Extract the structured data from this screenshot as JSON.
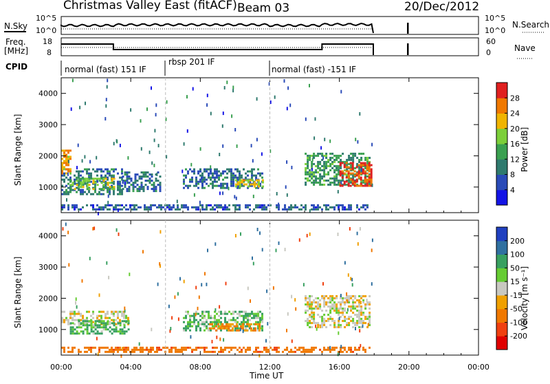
{
  "header": {
    "title": "Christmas Valley East (fitACF)",
    "beam": "Beam 03",
    "date": "20/Dec/2012"
  },
  "top_panels": {
    "nsky_label": "N.Sky",
    "nsearch_label": "N.Search",
    "noise_ticks_left": [
      "10^5",
      "10^0"
    ],
    "noise_ticks_right": [
      "10^5",
      "10^0"
    ],
    "freq_label_line1": "Freq.",
    "freq_label_line2": "[MHz]",
    "freq_ticks": [
      "18",
      "8"
    ],
    "nave_label": "Nave",
    "nave_ticks": [
      "60",
      "0"
    ],
    "cpid_label": "CPID",
    "cpid_segments": [
      {
        "label": "normal (fast) 151 IF",
        "start": 0,
        "end": 6
      },
      {
        "label": "rbsp 201 IF",
        "start": 6,
        "end": 12
      },
      {
        "label": "normal (fast) -151 IF",
        "start": 12,
        "end": 18.2
      }
    ]
  },
  "axes": {
    "xlabel": "Time UT",
    "x_ticks": [
      "00:00",
      "04:00",
      "08:00",
      "12:00",
      "16:00",
      "20:00",
      "00:00"
    ],
    "ylabel": "Slant Range [km]",
    "y_ticks": [
      "1000",
      "2000",
      "3000",
      "4000"
    ]
  },
  "power_bar": {
    "label": "Power [dB]",
    "ticks": [
      "4",
      "8",
      "12",
      "16",
      "20",
      "24",
      "28"
    ],
    "colors": [
      "#1414e6",
      "#2a4bb8",
      "#2f7a6e",
      "#3aa050",
      "#7ccf3a",
      "#f0b400",
      "#f07800",
      "#e02020"
    ]
  },
  "velocity_bar": {
    "label": "Velocity [m s⁻¹]",
    "ticks": [
      "200",
      "100",
      "50",
      "15",
      "-15",
      "-50",
      "-100",
      "-200"
    ],
    "colors": [
      "#2040c0",
      "#3070a0",
      "#38a060",
      "#66cc33",
      "#c8c8c0",
      "#f0a000",
      "#f07800",
      "#f04010",
      "#e00000"
    ]
  },
  "chart_data": {
    "type": "heatmap",
    "title": "Christmas Valley East (fitACF)",
    "xlabel": "Time UT",
    "ylabel": "Slant Range [km]",
    "xlim": [
      0,
      24
    ],
    "ylim": [
      180,
      4500
    ],
    "grid": false,
    "panels": [
      {
        "name": "Power [dB]",
        "scale": [
          0,
          30
        ],
        "regions": [
          {
            "t0": 0.0,
            "t1": 3.6,
            "r0": 700,
            "r1": 1600,
            "value": 9
          },
          {
            "t0": 0.5,
            "t1": 3.2,
            "r0": 900,
            "r1": 1300,
            "value": 17
          },
          {
            "t0": 0.0,
            "t1": 0.6,
            "r0": 1400,
            "r1": 2200,
            "value": 22
          },
          {
            "t0": 3.5,
            "t1": 5.8,
            "r0": 800,
            "r1": 1500,
            "value": 8
          },
          {
            "t0": 7.0,
            "t1": 11.7,
            "r0": 900,
            "r1": 1600,
            "value": 8
          },
          {
            "t0": 10.0,
            "t1": 11.7,
            "r0": 950,
            "r1": 1250,
            "value": 19
          },
          {
            "t0": 14.0,
            "t1": 17.9,
            "r0": 1000,
            "r1": 2100,
            "value": 12
          },
          {
            "t0": 16.0,
            "t1": 17.9,
            "r0": 1000,
            "r1": 1800,
            "value": 27
          },
          {
            "t0": 0.0,
            "t1": 17.8,
            "r0": 200,
            "r1": 450,
            "value": 7
          }
        ]
      },
      {
        "name": "Velocity [m s⁻¹]",
        "scale": [
          -200,
          200
        ],
        "regions": [
          {
            "t0": 0.0,
            "t1": 4.0,
            "r0": 1100,
            "r1": 1600,
            "value": 0
          },
          {
            "t0": 0.5,
            "t1": 4.0,
            "r0": 800,
            "r1": 1300,
            "value": 40
          },
          {
            "t0": 7.0,
            "t1": 11.7,
            "r0": 900,
            "r1": 1600,
            "value": 30
          },
          {
            "t0": 8.5,
            "t1": 11.5,
            "r0": 900,
            "r1": 1200,
            "value": -60
          },
          {
            "t0": 14.0,
            "t1": 17.9,
            "r0": 1000,
            "r1": 2100,
            "value": 0
          },
          {
            "t0": 0.0,
            "t1": 17.8,
            "r0": 200,
            "r1": 450,
            "value": -80
          }
        ]
      }
    ]
  }
}
